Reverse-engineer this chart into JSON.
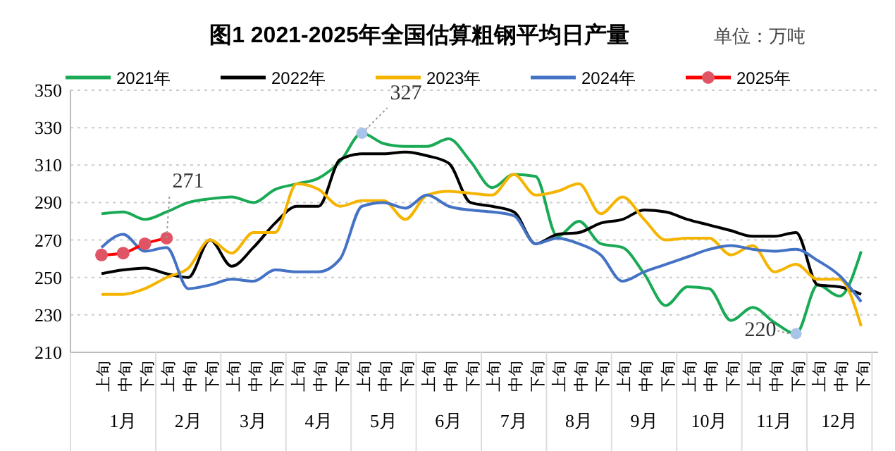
{
  "chart_data": {
    "type": "line",
    "title": "图1 2021-2025年全国估算粗钢平均日产量",
    "subtitle": "单位：万吨",
    "categories": [
      "上旬",
      "中旬",
      "下旬",
      "上旬",
      "中旬",
      "下旬",
      "上旬",
      "中旬",
      "下旬",
      "上旬",
      "中旬",
      "下旬",
      "上旬",
      "中旬",
      "下旬",
      "上旬",
      "中旬",
      "下旬",
      "上旬",
      "中旬",
      "下旬",
      "上旬",
      "中旬",
      "下旬",
      "上旬",
      "中旬",
      "下旬",
      "上旬",
      "中旬",
      "下旬",
      "上旬",
      "中旬",
      "下旬",
      "上旬",
      "中旬",
      "下旬"
    ],
    "series": [
      {
        "name": "2021年",
        "color": "#1aaa55",
        "values": [
          284,
          285,
          281,
          285,
          290,
          292,
          293,
          290,
          297,
          300,
          303,
          312,
          327,
          321.5,
          320,
          320,
          324,
          312,
          298,
          305,
          304,
          272,
          280,
          268,
          266,
          252,
          235,
          245,
          244,
          227,
          234,
          226,
          220,
          246,
          240,
          264
        ],
        "value_labels": [
          null,
          null,
          null,
          null,
          null,
          null,
          null,
          null,
          null,
          null,
          null,
          null,
          "327",
          null,
          null,
          null,
          null,
          null,
          null,
          null,
          null,
          null,
          null,
          null,
          null,
          null,
          null,
          null,
          null,
          null,
          null,
          null,
          "220",
          null,
          null,
          null
        ]
      },
      {
        "name": "2022年",
        "color": "#000000",
        "values": [
          252,
          254,
          255,
          252,
          250,
          270,
          256,
          266,
          279,
          288,
          288,
          313,
          316,
          316,
          317,
          315,
          311,
          290,
          288,
          285,
          268,
          273,
          274,
          279,
          281,
          286,
          285,
          281,
          278,
          275,
          272,
          272,
          274,
          246,
          245,
          241
        ]
      },
      {
        "name": "2023年",
        "color": "#f5b400",
        "values": [
          241,
          241,
          244,
          250,
          255,
          270,
          263,
          274,
          274,
          300,
          297,
          288,
          291,
          291,
          281,
          294,
          296,
          295,
          294,
          305,
          294,
          296,
          300,
          284,
          293,
          281,
          270,
          271,
          271,
          262,
          267,
          253,
          257,
          249,
          249,
          224
        ]
      },
      {
        "name": "2024年",
        "color": "#4472c4",
        "values": [
          266,
          273,
          264,
          266,
          244,
          246,
          249,
          248,
          254,
          253,
          253,
          260,
          288,
          290,
          287,
          294,
          288,
          286,
          285,
          283,
          268,
          271,
          268,
          262,
          248,
          253,
          257,
          261,
          265,
          267,
          265,
          264,
          265,
          259,
          251,
          237
        ]
      },
      {
        "name": "2025年",
        "color": "#ff0000",
        "marker": "circle",
        "values": [
          262,
          263,
          268,
          271,
          null,
          null,
          null,
          null,
          null,
          null,
          null,
          null,
          null,
          null,
          null,
          null,
          null,
          null,
          null,
          null,
          null,
          null,
          null,
          null,
          null,
          null,
          null,
          null,
          null,
          null,
          null,
          null,
          null,
          null,
          null,
          null
        ],
        "value_labels": [
          null,
          null,
          null,
          "271",
          null,
          null,
          null,
          null,
          null,
          null,
          null,
          null,
          null,
          null,
          null,
          null,
          null,
          null,
          null,
          null,
          null,
          null,
          null,
          null,
          null,
          null,
          null,
          null,
          null,
          null,
          null,
          null,
          null,
          null,
          null,
          null
        ]
      }
    ],
    "ylim": [
      210,
      350
    ],
    "yticks": [
      210,
      230,
      250,
      270,
      290,
      310,
      330,
      350
    ],
    "grid": "y",
    "legend": "top",
    "line_style": "solid",
    "annotations": [
      "1月",
      "2月",
      "3月",
      "4月",
      "5月",
      "6月",
      "7月",
      "8月",
      "9月",
      "10月",
      "11月",
      "12月"
    ]
  }
}
